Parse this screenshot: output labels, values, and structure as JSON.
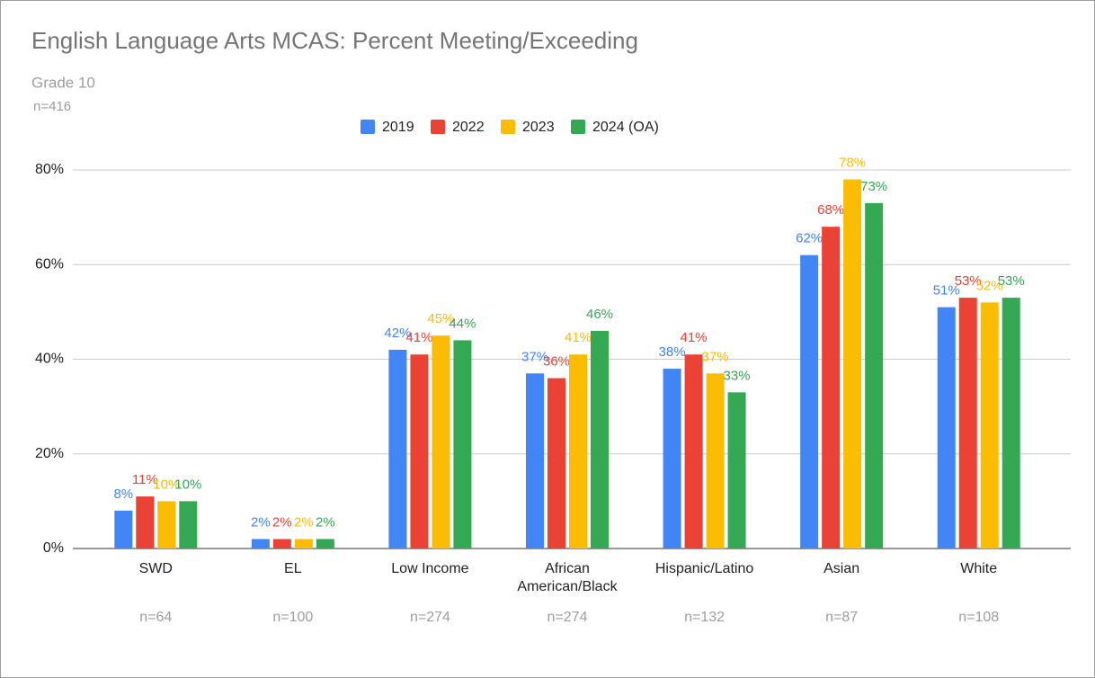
{
  "chart_data": {
    "type": "bar",
    "title": "English Language Arts MCAS: Percent Meeting/Exceeding",
    "subtitle": "Grade 10",
    "note": "n=416",
    "categories": [
      "SWD",
      "EL",
      "Low Income",
      "African American/Black",
      "Hispanic/Latino",
      "Asian",
      "White"
    ],
    "n_labels": [
      "n=64",
      "n=100",
      "n=274",
      "n=274",
      "n=132",
      "n=87",
      "n=108"
    ],
    "series": [
      {
        "name": "2019",
        "color": "#4285f4",
        "values": [
          8,
          2,
          42,
          37,
          38,
          62,
          51
        ],
        "value_labels": [
          "8%",
          "2%",
          "42%",
          "37%",
          "38%",
          "62%",
          "51%"
        ]
      },
      {
        "name": "2022",
        "color": "#ea4335",
        "values": [
          11,
          2,
          41,
          36,
          41,
          68,
          53
        ],
        "value_labels": [
          "11%",
          "2%",
          "41%",
          "36%",
          "41%",
          "68%",
          "53%"
        ]
      },
      {
        "name": "2023",
        "color": "#fbbc04",
        "values": [
          10,
          2,
          45,
          41,
          37,
          78,
          52
        ],
        "value_labels": [
          "10%",
          "2%",
          "45%",
          "41%",
          "37%",
          "78%",
          "52%"
        ]
      },
      {
        "name": "2024 (OA)",
        "color": "#34a853",
        "values": [
          10,
          2,
          44,
          46,
          33,
          73,
          53
        ],
        "value_labels": [
          "10%",
          "2%",
          "44%",
          "46%",
          "33%",
          "73%",
          "53%"
        ]
      }
    ],
    "ylim": [
      0,
      80
    ],
    "yticks": [
      {
        "value": 0,
        "label": "0%"
      },
      {
        "value": 20,
        "label": "20%"
      },
      {
        "value": 40,
        "label": "40%"
      },
      {
        "value": 60,
        "label": "60%"
      },
      {
        "value": 80,
        "label": "80%"
      }
    ],
    "grid": true,
    "legend": "top"
  }
}
